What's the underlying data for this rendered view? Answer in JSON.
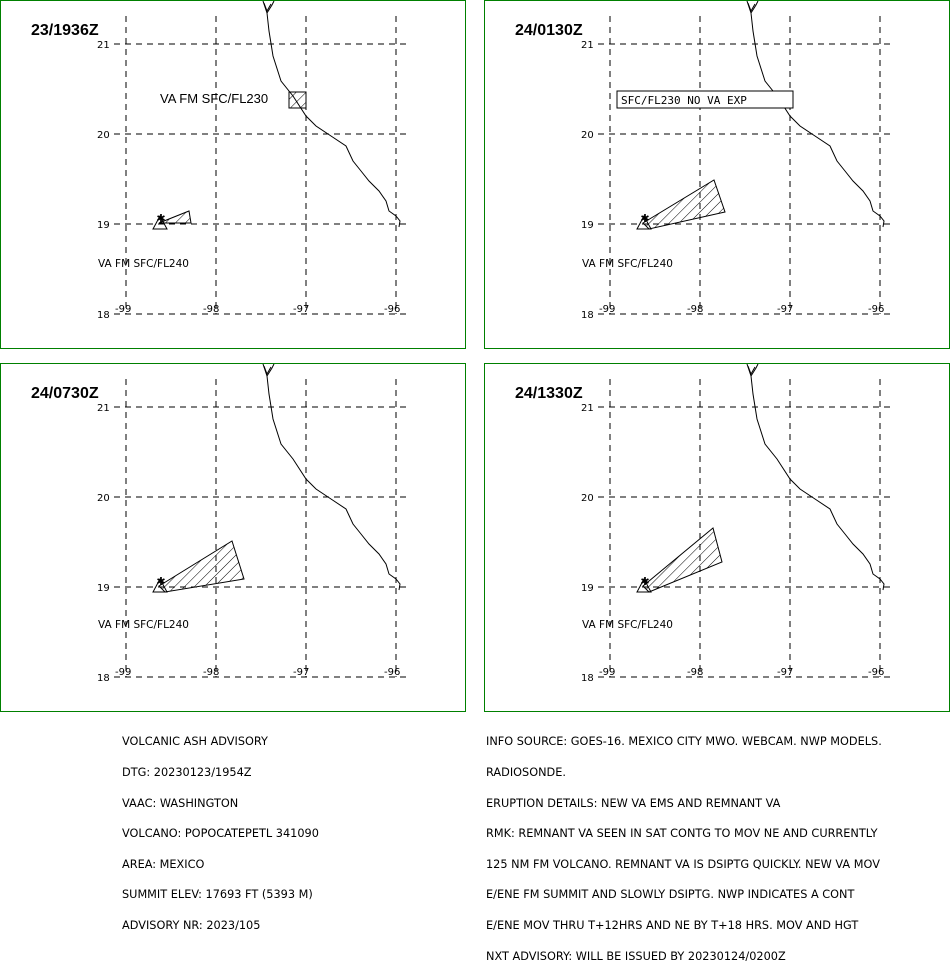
{
  "panels": [
    {
      "time": "23/1936Z",
      "lat_labels": [
        "21",
        "20",
        "19",
        "18"
      ],
      "lon_labels": [
        "-99",
        "-98",
        "-97",
        "-96"
      ],
      "labels": [
        "VA FM SFC/FL240",
        "VA FM SFC/FL230"
      ]
    },
    {
      "time": "24/0130Z",
      "lat_labels": [
        "21",
        "20",
        "19",
        "18"
      ],
      "lon_labels": [
        "-99",
        "-98",
        "-97",
        "-96"
      ],
      "labels": [
        "VA FM SFC/FL240",
        "SFC/FL230 NO VA EXP"
      ]
    },
    {
      "time": "24/0730Z",
      "lat_labels": [
        "21",
        "20",
        "19",
        "18"
      ],
      "lon_labels": [
        "-99",
        "-98",
        "-97",
        "-96"
      ],
      "labels": [
        "VA FM SFC/FL240"
      ]
    },
    {
      "time": "24/1330Z",
      "lat_labels": [
        "21",
        "20",
        "19",
        "18"
      ],
      "lon_labels": [
        "-99",
        "-98",
        "-97",
        "-96"
      ],
      "labels": [
        "VA FM SFC/FL240"
      ]
    }
  ],
  "advisory_left": [
    "VOLCANIC ASH ADVISORY",
    "DTG: 20230123/1954Z",
    "VAAC: WASHINGTON",
    "VOLCANO: POPOCATEPETL 341090",
    "AREA: MEXICO",
    "SUMMIT ELEV: 17693 FT (5393 M)",
    "ADVISORY NR: 2023/105"
  ],
  "advisory_right": [
    "INFO SOURCE: GOES-16. MEXICO CITY MWO. WEBCAM. NWP MODELS.",
    "RADIOSONDE.",
    "ERUPTION DETAILS: NEW VA EMS AND REMNANT VA",
    "RMK: REMNANT VA SEEN IN SAT CONTG TO MOV NE AND CURRENTLY",
    "125 NM FM VOLCANO. REMNANT VA IS DSIPTG QUICKLY. NEW VA MOV",
    "E/ENE FM SUMMIT AND SLOWLY DSIPTG. NWP INDICATES A CONT",
    "E/ENE MOV THRU T+12HRS AND NE BY T+18 HRS. MOV AND HGT",
    "NXT ADVISORY: WILL BE ISSUED BY 20230124/0200Z"
  ]
}
